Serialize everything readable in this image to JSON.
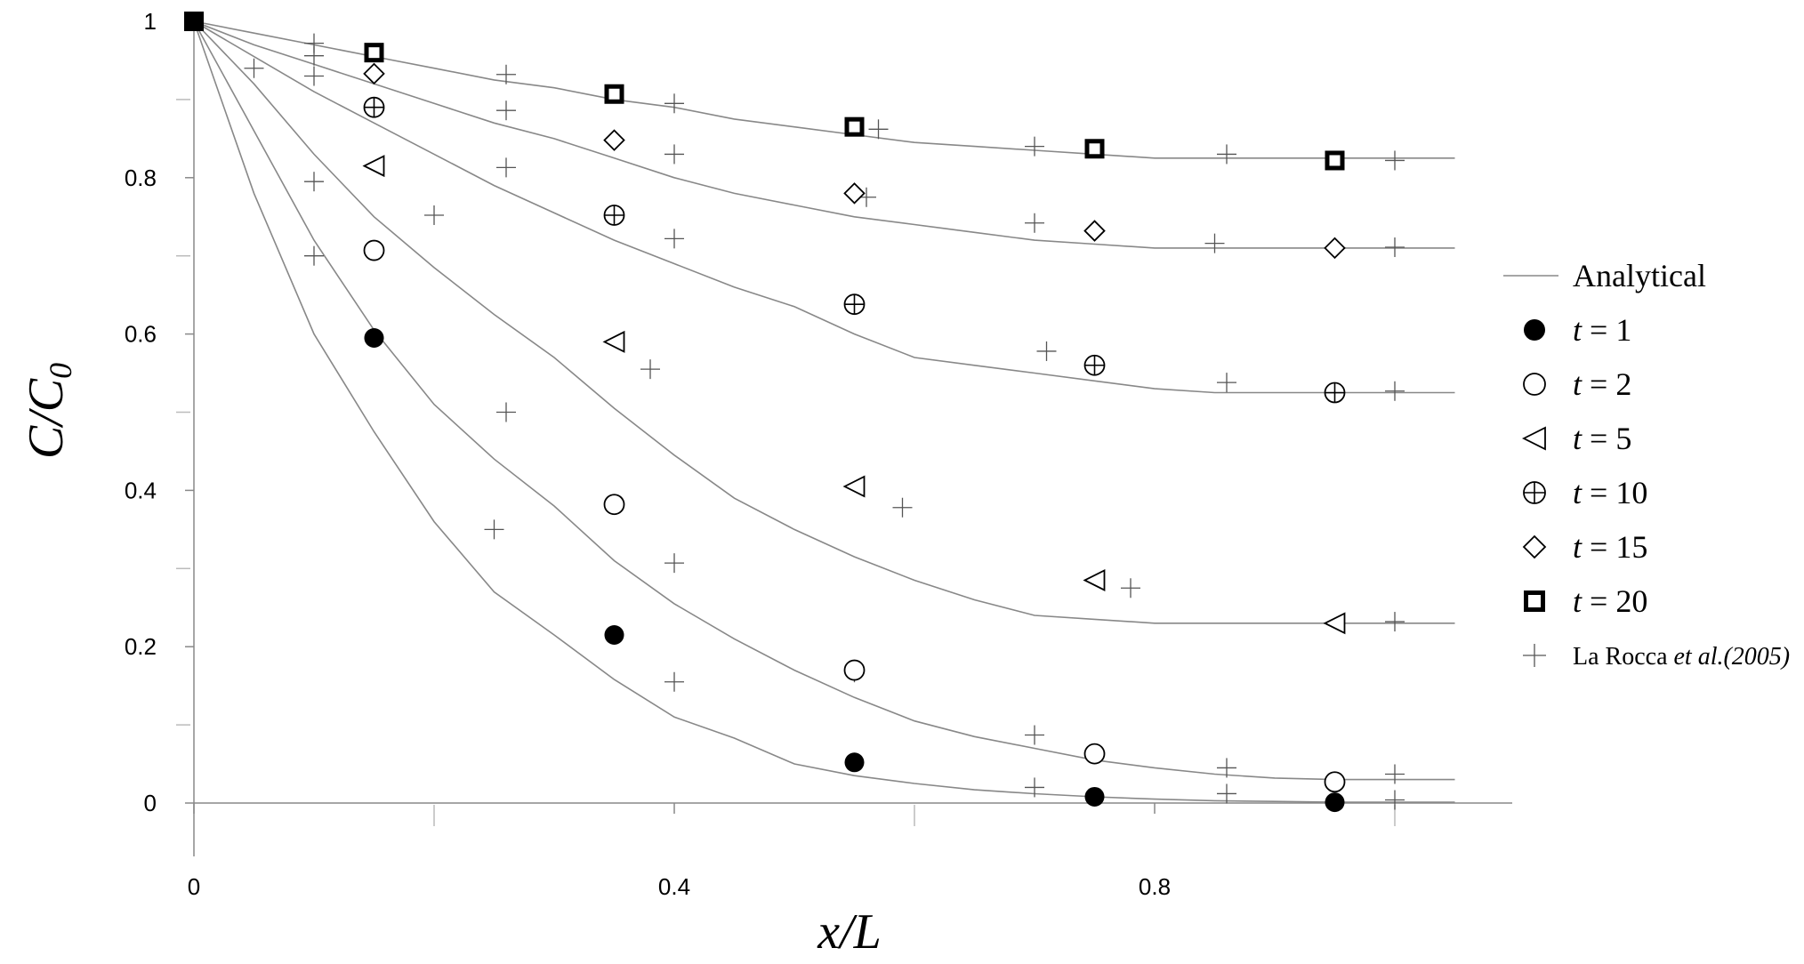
{
  "chart_data": {
    "type": "line",
    "xlabel": "x/L",
    "ylabel": "C/C0",
    "xlim": [
      0,
      1.1
    ],
    "ylim": [
      0,
      1
    ],
    "x_ticks": [
      0,
      0.4,
      0.8
    ],
    "x_tick_labels": [
      "0",
      "0.4",
      "0.8"
    ],
    "y_ticks": [
      0,
      0.2,
      0.4,
      0.6,
      0.8,
      1
    ],
    "y_tick_labels": [
      "0",
      "0.2",
      "0.4",
      "0.6",
      "0.8",
      "1"
    ],
    "grid": false,
    "legend_position": "right",
    "analytical_x": [
      0,
      0.05,
      0.1,
      0.15,
      0.2,
      0.25,
      0.3,
      0.35,
      0.4,
      0.45,
      0.5,
      0.55,
      0.6,
      0.65,
      0.7,
      0.75,
      0.8,
      0.85,
      0.9,
      0.95,
      1.0,
      1.05
    ],
    "series": [
      {
        "name": "t = 1",
        "marker": "filled-circle",
        "analytical": [
          1,
          0.78,
          0.6,
          0.475,
          0.36,
          0.27,
          0.215,
          0.158,
          0.11,
          0.083,
          0.05,
          0.035,
          0.025,
          0.017,
          0.012,
          0.008,
          0.005,
          0.003,
          0.002,
          0.001,
          0.001,
          0.001
        ],
        "points_x": [
          0.15,
          0.35,
          0.55,
          0.75,
          0.95
        ],
        "points_y": [
          0.595,
          0.215,
          0.052,
          0.008,
          0.001
        ],
        "reference_x": [
          0.1,
          0.25,
          0.4,
          0.7,
          0.86,
          1.0
        ],
        "reference_y": [
          0.7,
          0.35,
          0.155,
          0.02,
          0.012,
          0.004
        ]
      },
      {
        "name": "t = 2",
        "marker": "open-circle",
        "analytical": [
          1,
          0.86,
          0.72,
          0.605,
          0.51,
          0.44,
          0.38,
          0.31,
          0.255,
          0.21,
          0.17,
          0.135,
          0.105,
          0.085,
          0.07,
          0.055,
          0.045,
          0.037,
          0.032,
          0.03,
          0.03,
          0.03
        ],
        "points_x": [
          0.15,
          0.35,
          0.55,
          0.75,
          0.95
        ],
        "points_y": [
          0.707,
          0.382,
          0.17,
          0.063,
          0.027
        ],
        "reference_x": [
          0.1,
          0.26,
          0.4,
          0.55,
          0.7,
          0.86,
          1.0
        ],
        "reference_y": [
          0.795,
          0.5,
          0.307,
          0.167,
          0.087,
          0.045,
          0.037
        ]
      },
      {
        "name": "t = 5",
        "marker": "triangle-left",
        "analytical": [
          1,
          0.92,
          0.83,
          0.75,
          0.685,
          0.625,
          0.57,
          0.505,
          0.445,
          0.39,
          0.35,
          0.315,
          0.285,
          0.26,
          0.24,
          0.235,
          0.23,
          0.23,
          0.23,
          0.23,
          0.23,
          0.23
        ],
        "points_x": [
          0.15,
          0.35,
          0.55,
          0.75,
          0.95
        ],
        "points_y": [
          0.815,
          0.59,
          0.405,
          0.285,
          0.23
        ],
        "reference_x": [
          0.05,
          0.2,
          0.38,
          0.59,
          0.78,
          1.0
        ],
        "reference_y": [
          0.94,
          0.752,
          0.555,
          0.378,
          0.275,
          0.232
        ]
      },
      {
        "name": "t = 10",
        "marker": "circle-plus",
        "analytical": [
          1,
          0.955,
          0.91,
          0.87,
          0.83,
          0.79,
          0.755,
          0.72,
          0.69,
          0.66,
          0.635,
          0.6,
          0.57,
          0.56,
          0.55,
          0.54,
          0.53,
          0.525,
          0.525,
          0.525,
          0.525,
          0.525
        ],
        "points_x": [
          0.15,
          0.35,
          0.55,
          0.75,
          0.95
        ],
        "points_y": [
          0.89,
          0.752,
          0.638,
          0.56,
          0.525
        ],
        "reference_x": [
          0.1,
          0.26,
          0.4,
          0.71,
          0.86,
          1.0
        ],
        "reference_y": [
          0.93,
          0.813,
          0.722,
          0.578,
          0.538,
          0.527
        ]
      },
      {
        "name": "t = 15",
        "marker": "diamond",
        "analytical": [
          1,
          0.97,
          0.945,
          0.92,
          0.895,
          0.87,
          0.85,
          0.825,
          0.8,
          0.78,
          0.765,
          0.75,
          0.74,
          0.73,
          0.72,
          0.715,
          0.71,
          0.71,
          0.71,
          0.71,
          0.71,
          0.71
        ],
        "points_x": [
          0.15,
          0.35,
          0.55,
          0.75,
          0.95
        ],
        "points_y": [
          0.933,
          0.848,
          0.78,
          0.732,
          0.71
        ],
        "reference_x": [
          0.1,
          0.26,
          0.4,
          0.56,
          0.7,
          0.85,
          1.0
        ],
        "reference_y": [
          0.956,
          0.886,
          0.83,
          0.775,
          0.742,
          0.716,
          0.711
        ]
      },
      {
        "name": "t = 20",
        "marker": "bold-square",
        "analytical": [
          1,
          0.985,
          0.97,
          0.955,
          0.94,
          0.925,
          0.915,
          0.9,
          0.89,
          0.875,
          0.865,
          0.855,
          0.845,
          0.84,
          0.835,
          0.83,
          0.825,
          0.825,
          0.825,
          0.825,
          0.825,
          0.825
        ],
        "points_x": [
          0.15,
          0.35,
          0.55,
          0.75,
          0.95
        ],
        "points_y": [
          0.96,
          0.907,
          0.865,
          0.837,
          0.822
        ],
        "reference_x": [
          0.1,
          0.26,
          0.4,
          0.57,
          0.7,
          0.86,
          1.0
        ],
        "reference_y": [
          0.972,
          0.932,
          0.895,
          0.862,
          0.84,
          0.83,
          0.822
        ]
      }
    ],
    "legend": {
      "analytical_label": "Analytical",
      "t_symbol": "t",
      "t_equals": " = ",
      "t_values": [
        "1",
        "2",
        "5",
        "10",
        "15",
        "20"
      ],
      "reference_prefix": "La Rocca ",
      "reference_italic": "et al.(2005)"
    },
    "colors": {
      "line": "#888888",
      "axis": "#888888",
      "marker": "#000000",
      "reference": "#555555"
    }
  }
}
